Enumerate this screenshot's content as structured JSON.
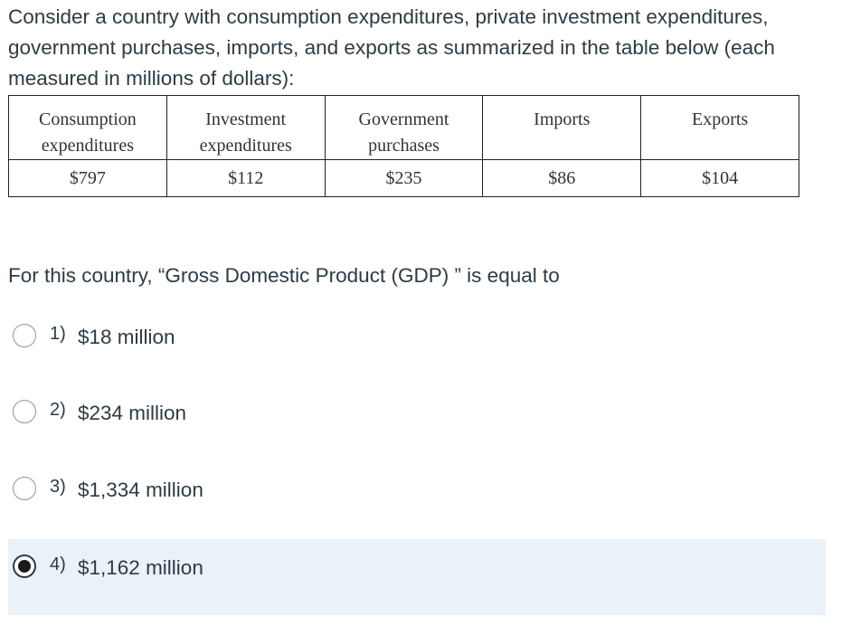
{
  "intro": "Consider a country with consumption expenditures, private investment expenditures, government purchases, imports, and exports as summarized in the table below (each measured in millions of dollars):",
  "table": {
    "headers": [
      {
        "line1": "Consumption",
        "line2": "expenditures"
      },
      {
        "line1": "Investment",
        "line2": "expenditures"
      },
      {
        "line1": "Government",
        "line2": "purchases"
      },
      {
        "line1": "Imports",
        "line2": ""
      },
      {
        "line1": "Exports",
        "line2": ""
      }
    ],
    "values": [
      "$797",
      "$112",
      "$235",
      "$86",
      "$104"
    ]
  },
  "question": "For this country, “Gross Domestic Product (GDP) ” is equal to",
  "options": [
    {
      "number": "1)",
      "text": "$18 million",
      "selected": false
    },
    {
      "number": "2)",
      "text": "$234 million",
      "selected": false
    },
    {
      "number": "3)",
      "text": "$1,334 million",
      "selected": false
    },
    {
      "number": "4)",
      "text": "$1,162 million",
      "selected": true
    }
  ]
}
